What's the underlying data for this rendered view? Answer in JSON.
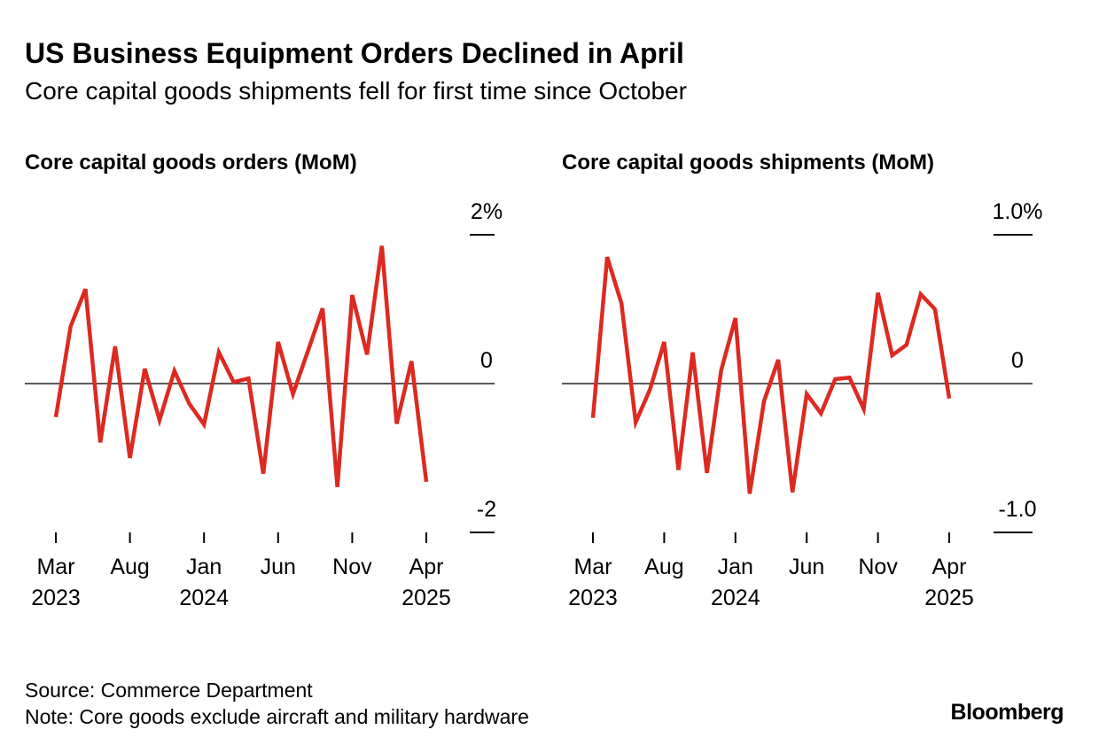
{
  "title": "US Business Equipment Orders Declined in April",
  "subtitle": "Core capital goods shipments fell for first time since October",
  "source": "Source: Commerce Department",
  "note": "Note: Core goods exclude aircraft and military hardware",
  "logo": "Bloomberg",
  "chart_data": [
    {
      "type": "line",
      "title": "Core capital goods orders (MoM)",
      "color": "#dc2a22",
      "categories": [
        "Mar 2023",
        null,
        null,
        null,
        null,
        "Aug",
        null,
        null,
        null,
        null,
        "Jan 2024",
        null,
        null,
        null,
        null,
        "Jun",
        null,
        null,
        null,
        null,
        "Nov",
        null,
        null,
        null,
        null,
        "Apr 2025"
      ],
      "values": [
        -0.45,
        0.77,
        1.27,
        -0.79,
        0.5,
        -1.0,
        0.2,
        -0.49,
        0.17,
        -0.27,
        -0.55,
        0.42,
        0.02,
        0.07,
        -1.21,
        0.56,
        -0.14,
        0.43,
        1.01,
        -1.39,
        1.19,
        0.39,
        1.85,
        -0.54,
        0.3,
        -1.32
      ],
      "ylim": [
        -2,
        2
      ],
      "yticks": [
        {
          "value": 2,
          "label": "2%"
        },
        0,
        -2
      ]
    },
    {
      "type": "line",
      "title": "Core capital goods shipments (MoM)",
      "color": "#dc2a22",
      "categories": [
        "Mar 2023",
        null,
        null,
        null,
        null,
        "Aug",
        null,
        null,
        null,
        null,
        "Jan 2024",
        null,
        null,
        null,
        null,
        "Jun",
        null,
        null,
        null,
        null,
        "Nov",
        null,
        null,
        null,
        null,
        "Apr 2025"
      ],
      "values": [
        -0.23,
        0.85,
        0.54,
        -0.26,
        -0.04,
        0.28,
        -0.58,
        0.21,
        -0.6,
        0.09,
        0.44,
        -0.74,
        -0.12,
        0.16,
        -0.73,
        -0.07,
        -0.2,
        0.03,
        0.04,
        -0.17,
        0.61,
        0.19,
        0.26,
        0.6,
        0.5,
        -0.1
      ],
      "ylim": [
        -1,
        1
      ],
      "yticks": [
        {
          "value": 1,
          "label": "1.0%"
        },
        0,
        {
          "value": -1,
          "label": "-1.0"
        }
      ]
    }
  ]
}
